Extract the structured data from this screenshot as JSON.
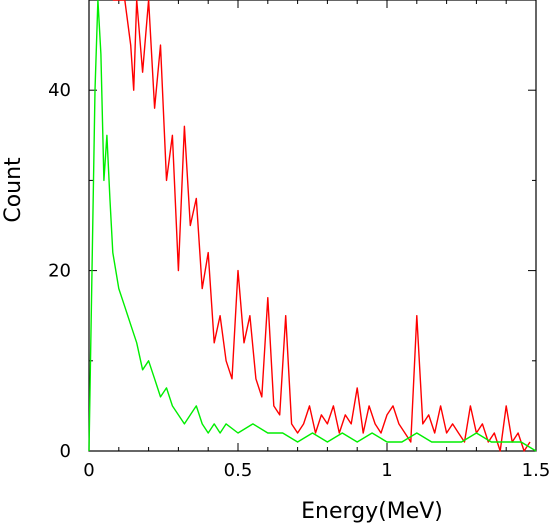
{
  "chart_data": {
    "type": "line",
    "title": "",
    "xlabel": "Energy(MeV)",
    "ylabel": "Count",
    "xlim": [
      0,
      1.5
    ],
    "ylim": [
      0,
      50
    ],
    "grid": false,
    "legend": "none",
    "x_ticks": [
      {
        "value": 0,
        "label": "0"
      },
      {
        "value": 0.5,
        "label": "0.5"
      },
      {
        "value": 1,
        "label": "1"
      },
      {
        "value": 1.5,
        "label": "1.5"
      }
    ],
    "y_ticks": [
      {
        "value": 0,
        "label": "0"
      },
      {
        "value": 20,
        "label": "20"
      },
      {
        "value": 40,
        "label": "40"
      }
    ],
    "series": [
      {
        "color": "#ff0000",
        "x": [
          0.08,
          0.1,
          0.12,
          0.14,
          0.15,
          0.16,
          0.18,
          0.2,
          0.22,
          0.24,
          0.26,
          0.28,
          0.3,
          0.32,
          0.34,
          0.36,
          0.38,
          0.4,
          0.42,
          0.44,
          0.46,
          0.48,
          0.5,
          0.52,
          0.54,
          0.56,
          0.58,
          0.6,
          0.62,
          0.64,
          0.66,
          0.68,
          0.7,
          0.72,
          0.74,
          0.76,
          0.78,
          0.8,
          0.82,
          0.84,
          0.86,
          0.88,
          0.9,
          0.92,
          0.94,
          0.96,
          0.98,
          1.0,
          1.02,
          1.04,
          1.06,
          1.08,
          1.1,
          1.12,
          1.14,
          1.16,
          1.18,
          1.2,
          1.22,
          1.24,
          1.26,
          1.28,
          1.3,
          1.32,
          1.34,
          1.36,
          1.38,
          1.4,
          1.42,
          1.44,
          1.46,
          1.48
        ],
        "y": [
          50,
          50,
          50,
          45,
          40,
          50,
          42,
          50,
          38,
          45,
          30,
          35,
          20,
          36,
          25,
          28,
          18,
          22,
          12,
          15,
          10,
          8,
          20,
          12,
          15,
          8,
          6,
          17,
          5,
          4,
          15,
          3,
          2,
          3,
          5,
          2,
          4,
          3,
          5,
          2,
          4,
          3,
          7,
          2,
          5,
          3,
          2,
          4,
          5,
          3,
          2,
          1,
          15,
          3,
          4,
          2,
          5,
          2,
          3,
          2,
          1,
          5,
          2,
          3,
          1,
          2,
          0,
          5,
          1,
          2,
          0,
          1
        ]
      },
      {
        "color": "#00ee00",
        "x": [
          0.0,
          0.02,
          0.03,
          0.04,
          0.05,
          0.06,
          0.07,
          0.08,
          0.1,
          0.12,
          0.14,
          0.16,
          0.18,
          0.2,
          0.22,
          0.24,
          0.26,
          0.28,
          0.3,
          0.32,
          0.34,
          0.36,
          0.38,
          0.4,
          0.42,
          0.44,
          0.46,
          0.5,
          0.55,
          0.6,
          0.65,
          0.7,
          0.75,
          0.8,
          0.85,
          0.9,
          0.95,
          1.0,
          1.05,
          1.1,
          1.15,
          1.2,
          1.25,
          1.3,
          1.35,
          1.4,
          1.45,
          1.5
        ],
        "y": [
          0,
          40,
          50,
          44,
          30,
          35,
          28,
          22,
          18,
          16,
          14,
          12,
          9,
          10,
          8,
          6,
          7,
          5,
          4,
          3,
          4,
          5,
          3,
          2,
          3,
          2,
          3,
          2,
          3,
          2,
          2,
          1,
          2,
          1,
          2,
          1,
          2,
          1,
          1,
          2,
          1,
          1,
          1,
          2,
          1,
          1,
          1,
          0
        ]
      }
    ]
  }
}
